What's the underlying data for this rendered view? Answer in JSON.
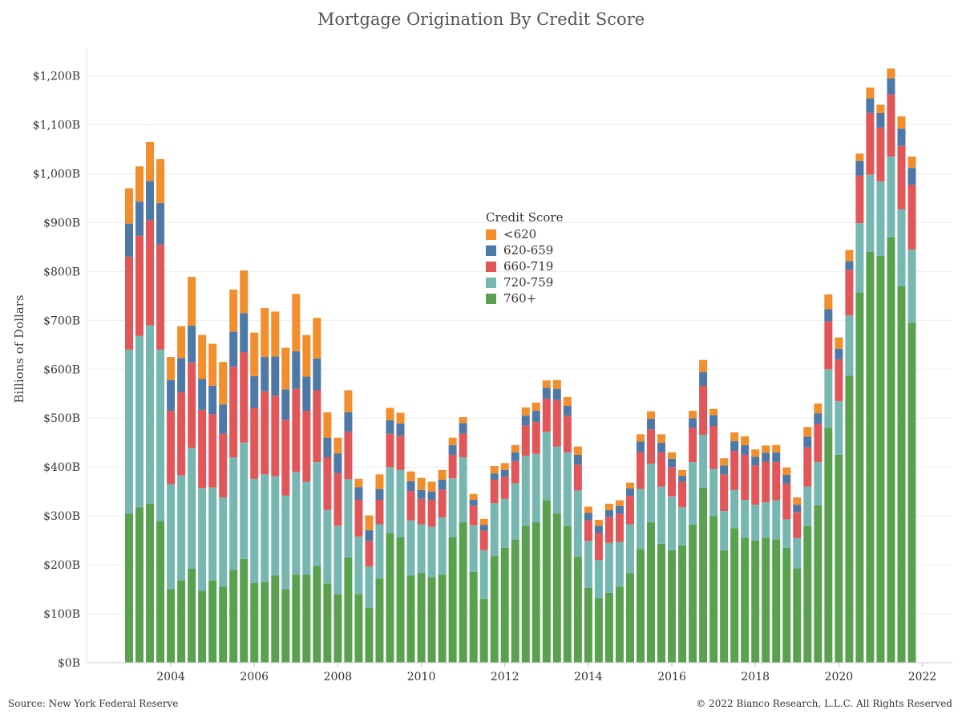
{
  "chart_data": {
    "type": "bar",
    "stacked": true,
    "title": "Mortgage Origination By Credit Score",
    "ylabel": "Billions of Dollars",
    "xlabel": "",
    "ylim": [
      0,
      1260
    ],
    "ytick_values": [
      0,
      100,
      200,
      300,
      400,
      500,
      600,
      700,
      800,
      900,
      1000,
      1100,
      1200
    ],
    "ytick_labels": [
      "$0B",
      "$100B",
      "$200B",
      "$300B",
      "$400B",
      "$500B",
      "$600B",
      "$700B",
      "$800B",
      "$900B",
      "$1,000B",
      "$1,100B",
      "$1,200B"
    ],
    "xtick_labels": [
      "2004",
      "2006",
      "2008",
      "2010",
      "2012",
      "2014",
      "2016",
      "2018",
      "2020",
      "2022"
    ],
    "first_quarter": "2003 Q1",
    "grid": "horizontal",
    "legend_title": "Credit Score",
    "legend_position": "center-top",
    "series": [
      {
        "name": "760+",
        "color": "#59a14f",
        "values": [
          305,
          318,
          325,
          290,
          150,
          168,
          192,
          147,
          168,
          155,
          190,
          212,
          163,
          165,
          178,
          150,
          180,
          180,
          198,
          162,
          140,
          215,
          140,
          112,
          172,
          265,
          257,
          178,
          183,
          175,
          180,
          257,
          287,
          186,
          130,
          218,
          235,
          252,
          280,
          287,
          332,
          305,
          280,
          217,
          153,
          132,
          143,
          155,
          183,
          232,
          287,
          243,
          230,
          240,
          282,
          358,
          300,
          230,
          275,
          255,
          250,
          255,
          252,
          235,
          193,
          280,
          322,
          480,
          425,
          587,
          757,
          840,
          832,
          870,
          770,
          695
        ]
      },
      {
        "name": "720-759",
        "color": "#76b7b2",
        "values": [
          335,
          350,
          365,
          350,
          215,
          215,
          247,
          210,
          190,
          183,
          230,
          238,
          213,
          220,
          203,
          192,
          210,
          190,
          212,
          150,
          140,
          160,
          118,
          85,
          111,
          135,
          137,
          113,
          100,
          103,
          117,
          120,
          133,
          95,
          100,
          108,
          100,
          115,
          143,
          140,
          140,
          137,
          150,
          135,
          96,
          78,
          102,
          92,
          100,
          123,
          120,
          117,
          110,
          78,
          128,
          108,
          96,
          80,
          78,
          78,
          73,
          73,
          80,
          58,
          62,
          80,
          88,
          120,
          110,
          123,
          142,
          158,
          152,
          165,
          157,
          150
        ]
      },
      {
        "name": "660-719",
        "color": "#e15759",
        "values": [
          190,
          205,
          215,
          215,
          150,
          170,
          175,
          160,
          150,
          130,
          185,
          185,
          145,
          170,
          165,
          155,
          170,
          145,
          147,
          108,
          108,
          97,
          75,
          52,
          50,
          68,
          70,
          60,
          52,
          55,
          57,
          48,
          48,
          40,
          40,
          48,
          45,
          45,
          62,
          65,
          68,
          95,
          75,
          53,
          42,
          55,
          53,
          57,
          58,
          75,
          70,
          70,
          60,
          52,
          70,
          100,
          88,
          75,
          80,
          92,
          80,
          83,
          78,
          73,
          53,
          80,
          78,
          98,
          85,
          93,
          97,
          126,
          110,
          127,
          130,
          132
        ]
      },
      {
        "name": "620-659",
        "color": "#4e79a7",
        "values": [
          68,
          70,
          80,
          85,
          63,
          70,
          75,
          63,
          58,
          60,
          72,
          80,
          65,
          70,
          80,
          62,
          77,
          70,
          65,
          40,
          40,
          40,
          26,
          22,
          22,
          28,
          25,
          20,
          18,
          17,
          20,
          20,
          22,
          12,
          12,
          13,
          14,
          18,
          20,
          23,
          22,
          23,
          20,
          20,
          15,
          15,
          14,
          16,
          15,
          22,
          22,
          20,
          17,
          12,
          20,
          28,
          22,
          18,
          20,
          20,
          18,
          18,
          20,
          18,
          15,
          22,
          22,
          25,
          22,
          18,
          30,
          30,
          30,
          33,
          35,
          35
        ]
      },
      {
        "name": "<620",
        "color": "#f28e2b",
        "values": [
          72,
          72,
          80,
          90,
          47,
          65,
          100,
          90,
          86,
          87,
          86,
          87,
          89,
          100,
          92,
          85,
          117,
          85,
          83,
          52,
          32,
          45,
          17,
          30,
          30,
          25,
          22,
          20,
          25,
          20,
          20,
          15,
          12,
          12,
          12,
          15,
          14,
          15,
          17,
          17,
          15,
          18,
          18,
          17,
          13,
          12,
          13,
          12,
          12,
          15,
          15,
          17,
          13,
          12,
          15,
          25,
          13,
          15,
          18,
          18,
          15,
          15,
          15,
          15,
          15,
          20,
          20,
          30,
          23,
          23,
          15,
          22,
          17,
          20,
          25,
          23
        ]
      }
    ]
  },
  "footer": {
    "source": "Source: New York Federal Reserve",
    "copyright": "© 2022 Bianco Research, L.L.C. All Rights Reserved"
  }
}
